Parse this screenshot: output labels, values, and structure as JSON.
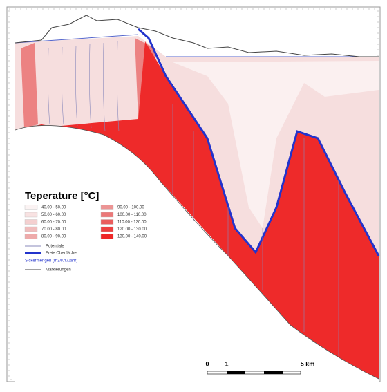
{
  "legend": {
    "title": "Teperature [°C]",
    "items": [
      {
        "label": "40.00  -  50.00",
        "color": "#fbf3f3"
      },
      {
        "label": "50.00  -  60.00",
        "color": "#f8e2e2"
      },
      {
        "label": "60.00  -  70.00",
        "color": "#f4d0d0"
      },
      {
        "label": "70.00  -  80.00",
        "color": "#f0bcbc"
      },
      {
        "label": "80.00  -  90.00",
        "color": "#eeaaaa"
      },
      {
        "label": "90.00  -  100.00",
        "color": "#ec9494"
      },
      {
        "label": "100.00  -  110.00",
        "color": "#eb7878"
      },
      {
        "label": "110.00  -  120.00",
        "color": "#ea5c5c"
      },
      {
        "label": "120.00  -  130.00",
        "color": "#ec4040"
      },
      {
        "label": "130.00  -  140.00",
        "color": "#ee2828"
      }
    ],
    "potentiale": "Potentiale",
    "freie_oberflaeche": "Freie Oberfläche",
    "sickermengen": "Sickermengen (m3/Kn./Jahr)",
    "markierungen": "Markierungen"
  },
  "scale_bar": {
    "zero": "0",
    "one": "1",
    "five": "5 km"
  }
}
